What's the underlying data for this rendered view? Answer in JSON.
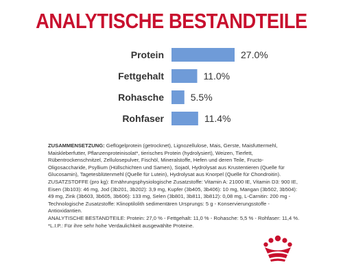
{
  "colors": {
    "title": "#c8102e",
    "bar": "#6f9bd8",
    "text": "#333333"
  },
  "page": {
    "title": "ANALYTISCHE BESTANDTEILE"
  },
  "chart_data": {
    "type": "bar",
    "orientation": "horizontal",
    "categories": [
      "Protein",
      "Fettgehalt",
      "Rohasche",
      "Rohfaser"
    ],
    "values": [
      27.0,
      11.0,
      5.5,
      11.4
    ],
    "value_labels": [
      "27.0%",
      "11.0%",
      "5.5%",
      "11.4%"
    ],
    "unit": "%",
    "title": "ANALYTISCHE BESTANDTEILE",
    "xlabel": "",
    "ylabel": "",
    "xlim": [
      0,
      27.0
    ],
    "grid": false
  },
  "composition": {
    "zusammensetzung_label": "ZUSAMMENSETZUNG:",
    "zusammensetzung_text": " Geflügelprotein (getrocknet), Lignozellulose, Mais, Gerste, Maisfuttermehl, Maiskleberfutter, Pflanzenproteinisolat*, tierisches Protein (hydrolysiert), Weizen, Tierfett, Rübentrockenschnitzel, Zellulosepulver, Fischöl, Mineralstoffe, Hefen und deren Teile, Fructo-Oligosaccharide, Psyllium (Hüllschichten und Samen), Sojaöl, Hydrolysat aus Krustentieren (Quelle für Glucosamin), Tagetesblütenmehl (Quelle für Lutein), Hydrolysat aus Knorpel (Quelle für Chondroitin).",
    "zusatzstoffe_label": "ZUSATZSTOFFE",
    "zusatzstoffe_text": " (pro kg): Ernährungsphysiologische Zusatzstoffe: Vitamin A: 21000 IE, Vitamin D3: 900 IE, Eisen (3b103): 46 mg, Jod (3b201, 3b202): 3,9 mg, Kupfer (3b405, 3b406): 10 mg, Mangan (3b502, 3b504): 49 mg, Zink (3b603, 3b605, 3b606): 133 mg, Selen (3b801, 3b811, 3b812): 0,08 mg, L-Carnitin: 200 mg - Technologische Zusatzstoffe: Klinoptilolith sedimentären Ursprungs: 5 g - Konservierungsstoffe - Antioxidantien.",
    "analytische_label": "ANALYTISCHE BESTANDTEILE",
    "analytische_text": ": Protein: 27,0 % - Fettgehalt: 11,0 % - Rohasche: 5,5 % - Rohfaser: 11,4 %.",
    "lip_text": "*L.I.P.: Für ihre sehr hohe Verdaulichkeit ausgewählte Proteine."
  },
  "logo": {
    "name": "crown-logo"
  }
}
